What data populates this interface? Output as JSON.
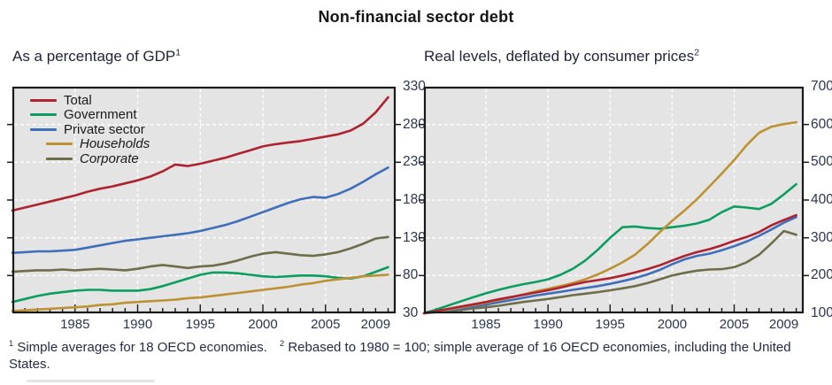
{
  "page_title": "Non-financial sector debt",
  "colors": {
    "total": "#ae2330",
    "government": "#0b9e60",
    "private_sector": "#3f6fba",
    "households": "#bd9232",
    "corporate": "#6e6e4b",
    "plot_background": "#e4e4e4",
    "grid": "#ffffff",
    "axis_text": "#2b3550",
    "border": "#1a1a1a"
  },
  "footnotes": [
    {
      "sup": "1",
      "text": "Simple averages for 18 OECD economies."
    },
    {
      "sup": "2",
      "text": "Rebased to 1980 = 100; simple average of 16 OECD economies, including the United States."
    }
  ],
  "chart_data": [
    {
      "type": "line",
      "title": "As a percentage of GDP",
      "title_sup": "1",
      "x_years": [
        1980,
        1981,
        1982,
        1983,
        1984,
        1985,
        1986,
        1987,
        1988,
        1989,
        1990,
        1991,
        1992,
        1993,
        1994,
        1995,
        1996,
        1997,
        1998,
        1999,
        2000,
        2001,
        2002,
        2003,
        2004,
        2005,
        2006,
        2007,
        2008,
        2009,
        2010
      ],
      "xlim": [
        1980,
        2010.6
      ],
      "ylim": [
        30,
        330
      ],
      "yticks": [
        {
          "value": 330,
          "label": "330"
        },
        {
          "value": 280,
          "label": "280"
        },
        {
          "value": 230,
          "label": "230"
        },
        {
          "value": 180,
          "label": "180"
        },
        {
          "value": 130,
          "label": "130"
        },
        {
          "value": 80,
          "label": "80"
        },
        {
          "value": 30,
          "label": "30"
        }
      ],
      "xticks": [
        {
          "year": 1985,
          "label": "1985"
        },
        {
          "year": 1990,
          "label": "1990"
        },
        {
          "year": 1995,
          "label": "1995"
        },
        {
          "year": 2000,
          "label": "2000"
        },
        {
          "year": 2005,
          "label": "2005"
        },
        {
          "year": 2009,
          "label": "2009"
        }
      ],
      "grid_vertical_years": [
        1985,
        1990,
        1995,
        2000,
        2005
      ],
      "series": [
        {
          "key": "total",
          "name": "Total",
          "values": [
            166,
            170,
            174,
            178,
            182,
            186,
            191,
            195,
            198,
            202,
            206,
            211,
            218,
            227,
            225,
            228,
            232,
            236,
            241,
            246,
            251,
            254,
            256,
            258,
            261,
            264,
            267,
            272,
            281,
            296,
            316
          ]
        },
        {
          "key": "government",
          "name": "Government",
          "values": [
            45,
            49,
            53,
            56,
            58,
            60,
            61,
            61,
            60,
            60,
            60,
            62,
            66,
            71,
            76,
            81,
            84,
            84,
            83,
            81,
            79,
            78,
            79,
            80,
            80,
            79,
            77,
            76,
            79,
            85,
            91
          ]
        },
        {
          "key": "private_sector",
          "name": "Private sector",
          "values": [
            110,
            111,
            112,
            112,
            113,
            114,
            117,
            120,
            123,
            126,
            128,
            130,
            132,
            134,
            136,
            139,
            143,
            147,
            152,
            158,
            164,
            170,
            176,
            181,
            184,
            183,
            188,
            195,
            204,
            214,
            223
          ]
        },
        {
          "key": "households",
          "name": "Households",
          "values": [
            33,
            34,
            35,
            36,
            37,
            38,
            39,
            41,
            42,
            44,
            45,
            46,
            47,
            48,
            50,
            51,
            53,
            55,
            57,
            59,
            61,
            63,
            65,
            68,
            70,
            73,
            75,
            77,
            79,
            80,
            81
          ]
        },
        {
          "key": "corporate",
          "name": "Corporate",
          "values": [
            85,
            86,
            87,
            87,
            88,
            87,
            88,
            89,
            88,
            87,
            89,
            92,
            94,
            92,
            90,
            92,
            93,
            96,
            100,
            105,
            109,
            111,
            109,
            107,
            106,
            108,
            111,
            116,
            122,
            129,
            131
          ]
        }
      ],
      "legend": {
        "position": "top-left",
        "items": [
          {
            "key": "total",
            "label": "Total",
            "italic": false,
            "indent": false
          },
          {
            "key": "government",
            "label": "Government",
            "italic": false,
            "indent": false
          },
          {
            "key": "private_sector",
            "label": "Private sector",
            "italic": false,
            "indent": false
          },
          {
            "key": "households",
            "label": "Households",
            "italic": true,
            "indent": true
          },
          {
            "key": "corporate",
            "label": "Corporate",
            "italic": true,
            "indent": true
          }
        ]
      }
    },
    {
      "type": "line",
      "title": "Real levels, deflated by consumer prices",
      "title_sup": "2",
      "x_years": [
        1980,
        1981,
        1982,
        1983,
        1984,
        1985,
        1986,
        1987,
        1988,
        1989,
        1990,
        1991,
        1992,
        1993,
        1994,
        1995,
        1996,
        1997,
        1998,
        1999,
        2000,
        2001,
        2002,
        2003,
        2004,
        2005,
        2006,
        2007,
        2008,
        2009,
        2010
      ],
      "xlim": [
        1980,
        2010.6
      ],
      "ylim": [
        100,
        700
      ],
      "yticks": [
        {
          "value": 700,
          "label": "700"
        },
        {
          "value": 600,
          "label": "600"
        },
        {
          "value": 500,
          "label": "500"
        },
        {
          "value": 400,
          "label": "400"
        },
        {
          "value": 300,
          "label": "300"
        },
        {
          "value": 200,
          "label": "200"
        },
        {
          "value": 100,
          "label": "100"
        }
      ],
      "xticks": [
        {
          "year": 1985,
          "label": "1985"
        },
        {
          "year": 1990,
          "label": "1990"
        },
        {
          "year": 1995,
          "label": "1995"
        },
        {
          "year": 2000,
          "label": "2000"
        },
        {
          "year": 2005,
          "label": "2005"
        },
        {
          "year": 2009,
          "label": "2009"
        }
      ],
      "grid_vertical_years": [
        1985,
        1990,
        1995,
        2000,
        2005
      ],
      "series": [
        {
          "key": "total",
          "name": "Total",
          "values": [
            100,
            106,
            112,
            118,
            124,
            130,
            137,
            143,
            149,
            155,
            161,
            168,
            176,
            183,
            188,
            193,
            200,
            208,
            217,
            227,
            240,
            252,
            262,
            270,
            280,
            292,
            302,
            315,
            333,
            347,
            360
          ]
        },
        {
          "key": "government",
          "name": "Government",
          "values": [
            100,
            110,
            121,
            132,
            143,
            153,
            162,
            170,
            177,
            183,
            190,
            202,
            218,
            240,
            268,
            300,
            328,
            330,
            326,
            324,
            328,
            332,
            338,
            348,
            368,
            383,
            380,
            376,
            390,
            415,
            442
          ]
        },
        {
          "key": "private_sector",
          "name": "Private sector",
          "values": [
            100,
            104,
            108,
            113,
            118,
            123,
            129,
            135,
            141,
            147,
            152,
            157,
            162,
            167,
            172,
            178,
            185,
            193,
            203,
            215,
            230,
            243,
            252,
            258,
            267,
            278,
            290,
            305,
            322,
            340,
            355
          ]
        },
        {
          "key": "households",
          "name": "Households",
          "values": [
            100,
            105,
            110,
            116,
            122,
            128,
            135,
            142,
            150,
            158,
            165,
            172,
            180,
            190,
            203,
            218,
            235,
            255,
            283,
            315,
            345,
            372,
            402,
            436,
            470,
            506,
            545,
            578,
            594,
            601,
            606
          ]
        },
        {
          "key": "corporate",
          "name": "Corporate",
          "values": [
            100,
            103,
            106,
            109,
            113,
            116,
            120,
            125,
            130,
            134,
            138,
            143,
            148,
            152,
            156,
            161,
            166,
            172,
            180,
            190,
            200,
            207,
            213,
            216,
            217,
            222,
            235,
            255,
            285,
            318,
            308
          ]
        }
      ]
    }
  ]
}
